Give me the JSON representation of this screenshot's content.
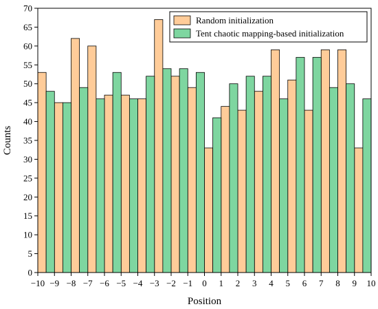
{
  "chart_data": {
    "type": "bar",
    "xlabel": "Position",
    "ylabel": "Counts",
    "xlim": [
      -10,
      10
    ],
    "ylim": [
      0,
      70
    ],
    "x_ticks": [
      -10,
      -9,
      -8,
      -7,
      -6,
      -5,
      -4,
      -3,
      -2,
      -1,
      0,
      1,
      2,
      3,
      4,
      5,
      6,
      7,
      8,
      9,
      10
    ],
    "x_tick_labels": [
      "−10",
      "−9",
      "−8",
      "−7",
      "−6",
      "−5",
      "−4",
      "−3",
      "−2",
      "−1",
      "0",
      "1",
      "2",
      "3",
      "4",
      "5",
      "6",
      "7",
      "8",
      "9",
      "10"
    ],
    "y_ticks": [
      0,
      5,
      10,
      15,
      20,
      25,
      30,
      35,
      40,
      45,
      50,
      55,
      60,
      65,
      70
    ],
    "grid": false,
    "legend_position": "top-right",
    "series": [
      {
        "name": "Random initialization",
        "color": "#ffcc99",
        "values": [
          53,
          45,
          62,
          60,
          47,
          47,
          46,
          67,
          52,
          49,
          33,
          44,
          43,
          48,
          59,
          51,
          43,
          59,
          59,
          33
        ]
      },
      {
        "name": "Tent chaotic mapping-based initialization",
        "color": "#7ed6a0",
        "values": [
          48,
          45,
          49,
          46,
          53,
          46,
          52,
          54,
          54,
          53,
          41,
          50,
          52,
          52,
          46,
          57,
          57,
          49,
          50,
          46
        ]
      }
    ]
  }
}
